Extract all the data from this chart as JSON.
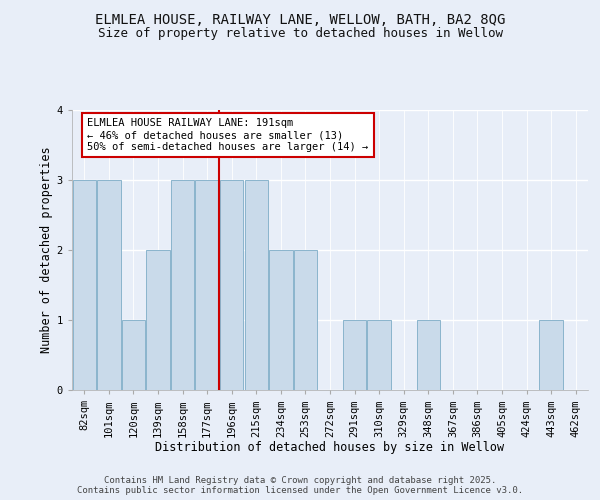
{
  "title_line1": "ELMLEA HOUSE, RAILWAY LANE, WELLOW, BATH, BA2 8QG",
  "title_line2": "Size of property relative to detached houses in Wellow",
  "xlabel": "Distribution of detached houses by size in Wellow",
  "ylabel": "Number of detached properties",
  "categories": [
    "82sqm",
    "101sqm",
    "120sqm",
    "139sqm",
    "158sqm",
    "177sqm",
    "196sqm",
    "215sqm",
    "234sqm",
    "253sqm",
    "272sqm",
    "291sqm",
    "310sqm",
    "329sqm",
    "348sqm",
    "367sqm",
    "386sqm",
    "405sqm",
    "424sqm",
    "443sqm",
    "462sqm"
  ],
  "values": [
    3,
    3,
    1,
    2,
    3,
    3,
    3,
    3,
    2,
    2,
    0,
    1,
    1,
    0,
    1,
    0,
    0,
    0,
    0,
    1,
    0
  ],
  "bar_color": "#c9daea",
  "bar_edge_color": "#8ab4cc",
  "vline_x_index": 5.5,
  "vline_color": "#cc0000",
  "annotation_text": "ELMLEA HOUSE RAILWAY LANE: 191sqm\n← 46% of detached houses are smaller (13)\n50% of semi-detached houses are larger (14) →",
  "annotation_box_color": "#ffffff",
  "annotation_box_edgecolor": "#cc0000",
  "ylim": [
    0,
    4
  ],
  "yticks": [
    0,
    1,
    2,
    3,
    4
  ],
  "background_color": "#e8eef8",
  "plot_bg_color": "#e8eef8",
  "footer_line1": "Contains HM Land Registry data © Crown copyright and database right 2025.",
  "footer_line2": "Contains public sector information licensed under the Open Government Licence v3.0.",
  "title_fontsize": 10,
  "subtitle_fontsize": 9,
  "axis_label_fontsize": 8.5,
  "tick_fontsize": 7.5,
  "annotation_fontsize": 7.5,
  "footer_fontsize": 6.5
}
